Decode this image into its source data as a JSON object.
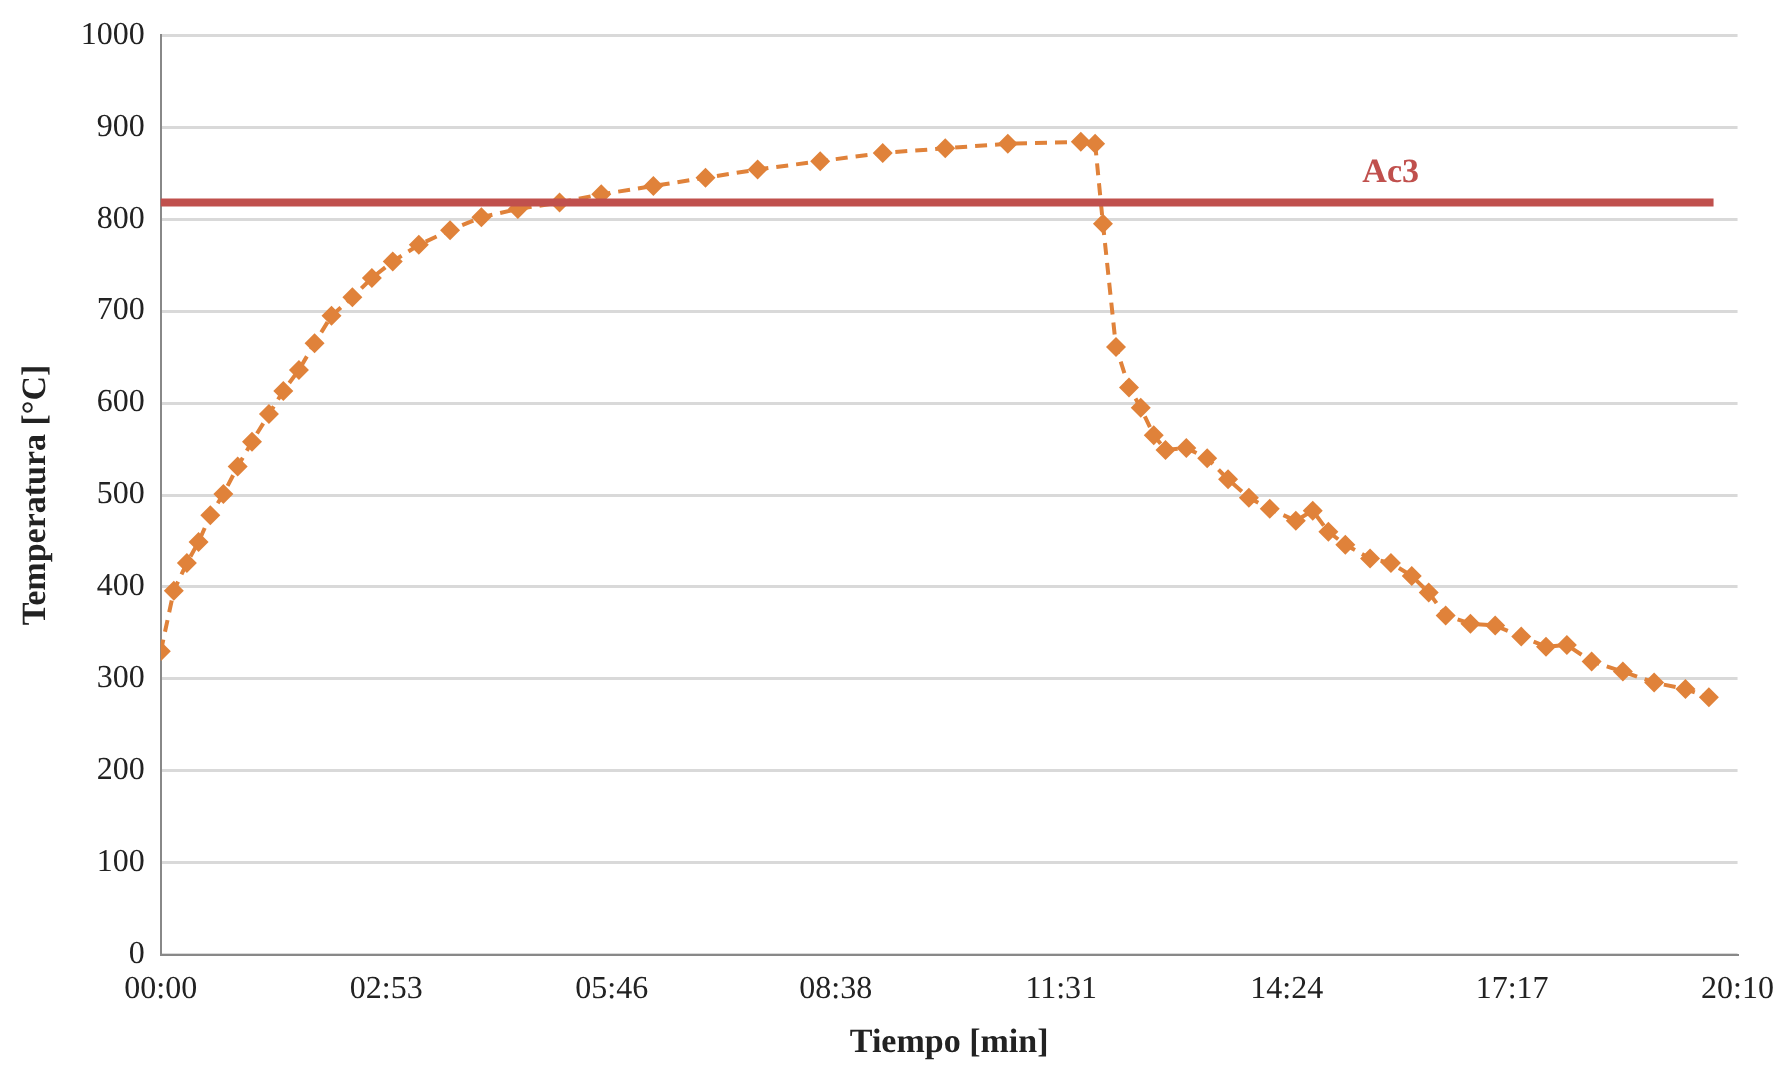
{
  "chart_data": {
    "type": "line",
    "xlabel": "Tiempo [min]",
    "ylabel": "Temperatura [°C]",
    "xlim": [
      0,
      1210
    ],
    "xticks": [
      {
        "value": 0,
        "label": "00:00"
      },
      {
        "value": 173,
        "label": "02:53"
      },
      {
        "value": 346,
        "label": "05:46"
      },
      {
        "value": 518,
        "label": "08:38"
      },
      {
        "value": 691,
        "label": "11:31"
      },
      {
        "value": 864,
        "label": "14:24"
      },
      {
        "value": 1037,
        "label": "17:17"
      },
      {
        "value": 1210,
        "label": "20:10"
      }
    ],
    "ylim": [
      0,
      1000
    ],
    "yticks": [
      0,
      100,
      200,
      300,
      400,
      500,
      600,
      700,
      800,
      900,
      1000
    ],
    "grid": "y",
    "legend": false,
    "marker": "diamond",
    "line_style": "dashed",
    "series": [
      {
        "color": "#e0823a",
        "x": [
          0,
          10,
          20,
          29,
          38,
          48,
          59,
          70,
          83,
          94,
          106,
          118,
          131,
          147,
          162,
          178,
          198,
          222,
          246,
          274,
          306,
          338,
          378,
          418,
          458,
          506,
          554,
          602,
          650,
          706,
          717,
          723,
          733,
          743,
          752,
          762,
          771,
          787,
          803,
          819,
          835,
          851,
          871,
          884,
          896,
          909,
          928,
          944,
          960,
          973,
          986,
          1005,
          1024,
          1044,
          1063,
          1079,
          1098,
          1122,
          1146,
          1170,
          1188
        ],
        "values": [
          330,
          396,
          426,
          449,
          478,
          501,
          531,
          558,
          588,
          613,
          636,
          665,
          695,
          715,
          736,
          754,
          772,
          788,
          802,
          811,
          818,
          827,
          836,
          845,
          854,
          863,
          872,
          877,
          882,
          884,
          882,
          795,
          661,
          617,
          595,
          565,
          549,
          551,
          540,
          517,
          497,
          485,
          472,
          483,
          460,
          446,
          431,
          426,
          412,
          394,
          369,
          360,
          358,
          346,
          335,
          337,
          319,
          308,
          296,
          289,
          280
        ]
      }
    ],
    "ref_lines": [
      {
        "axis": "y",
        "value": 818,
        "label": "Ac3",
        "color": "#c0504d"
      }
    ]
  }
}
